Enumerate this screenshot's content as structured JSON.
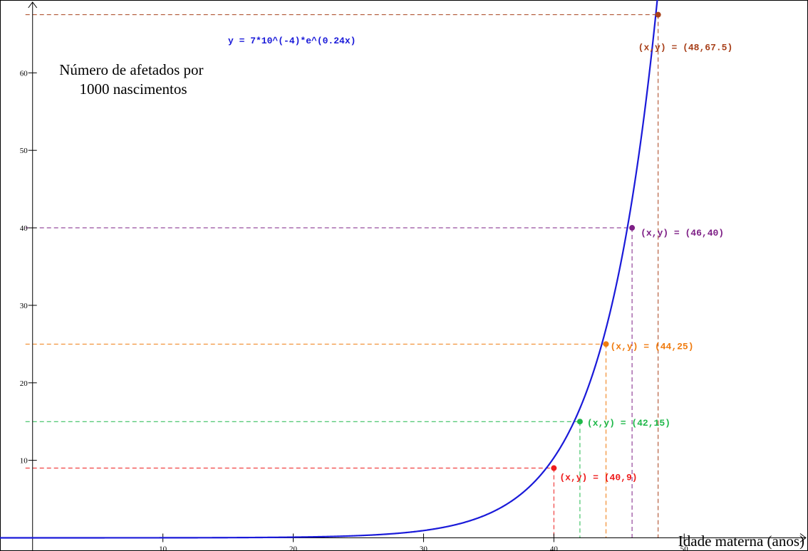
{
  "chart_data": {
    "type": "line",
    "title": "",
    "xlabel": "Idade materna (anos)",
    "ylabel_lines": [
      "Número de afetados por",
      "1000 nascimentos"
    ],
    "xlim": [
      -2.5,
      59.5
    ],
    "ylim": [
      -1.7,
      69.4
    ],
    "x_ticks": [
      10,
      20,
      30,
      40,
      50
    ],
    "y_ticks": [
      10,
      20,
      30,
      40,
      50,
      60
    ],
    "grid": false,
    "series": [
      {
        "name": "",
        "equation": "y = 7*10^(-4)*e^(0.24x)",
        "coefficient": 0.0007,
        "rate": 0.24,
        "color": "#1a1ad9"
      }
    ],
    "points": [
      {
        "x": 40,
        "y": 9,
        "label": "(x,y) = (40,9)",
        "color": "#ee1c1c"
      },
      {
        "x": 42,
        "y": 15,
        "label": "(x,y) = (42,15)",
        "color": "#1fb84a"
      },
      {
        "x": 44,
        "y": 25,
        "label": "(x,y) = (44,25)",
        "color": "#f07c10"
      },
      {
        "x": 46,
        "y": 40,
        "label": "(x,y) = (46,40)",
        "color": "#7e1f86"
      },
      {
        "x": 48,
        "y": 67.5,
        "label": "(x,y) = (48,67.5)",
        "color": "#a8401a"
      }
    ]
  }
}
